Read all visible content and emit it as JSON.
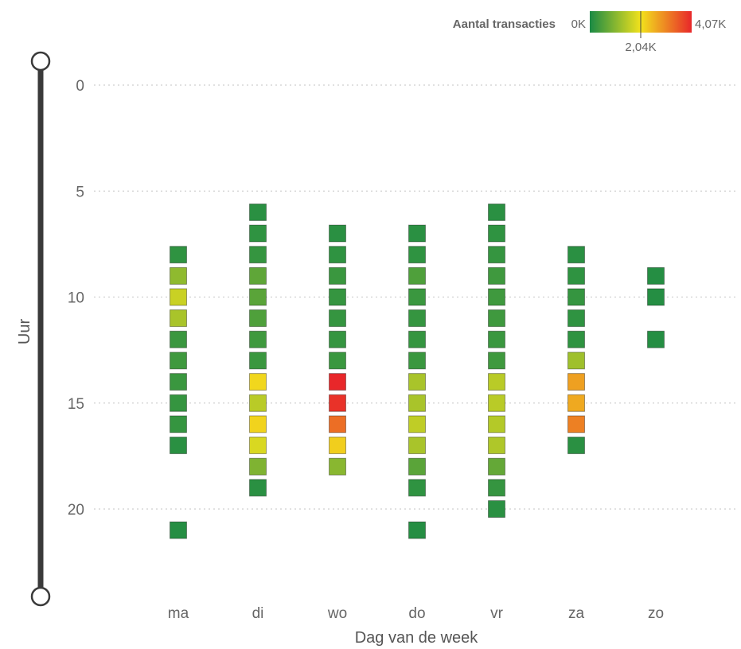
{
  "chart_data": {
    "type": "heatmap",
    "legend": {
      "title": "Aantal transacties",
      "min_label": "0K",
      "mid_label": "2,04K",
      "max_label": "4,07K",
      "min": 0,
      "mid": 2040,
      "max": 4070,
      "colors": [
        "#1a8a45",
        "#f2e21c",
        "#e8272a"
      ]
    },
    "xlabel": "Dag van de week",
    "ylabel": "Uur",
    "categories": [
      "ma",
      "di",
      "wo",
      "do",
      "vr",
      "za",
      "zo"
    ],
    "y_ticks": [
      "0",
      "5",
      "10",
      "15",
      "20"
    ],
    "y_tick_values": [
      0,
      5,
      10,
      15,
      20
    ],
    "ylim": [
      0,
      23
    ],
    "grid": true,
    "slider": {
      "min": 0,
      "max": 23
    },
    "cells": [
      {
        "day": "ma",
        "hour": 8,
        "value": 200
      },
      {
        "day": "ma",
        "hour": 9,
        "value": 1100
      },
      {
        "day": "ma",
        "hour": 10,
        "value": 1650
      },
      {
        "day": "ma",
        "hour": 11,
        "value": 1350
      },
      {
        "day": "ma",
        "hour": 12,
        "value": 300
      },
      {
        "day": "ma",
        "hour": 13,
        "value": 350
      },
      {
        "day": "ma",
        "hour": 14,
        "value": 300
      },
      {
        "day": "ma",
        "hour": 15,
        "value": 250
      },
      {
        "day": "ma",
        "hour": 16,
        "value": 250
      },
      {
        "day": "ma",
        "hour": 17,
        "value": 150
      },
      {
        "day": "ma",
        "hour": 21,
        "value": 100
      },
      {
        "day": "di",
        "hour": 6,
        "value": 150
      },
      {
        "day": "di",
        "hour": 7,
        "value": 200
      },
      {
        "day": "di",
        "hour": 8,
        "value": 250
      },
      {
        "day": "di",
        "hour": 9,
        "value": 650
      },
      {
        "day": "di",
        "hour": 10,
        "value": 600
      },
      {
        "day": "di",
        "hour": 11,
        "value": 500
      },
      {
        "day": "di",
        "hour": 12,
        "value": 350
      },
      {
        "day": "di",
        "hour": 13,
        "value": 300
      },
      {
        "day": "di",
        "hour": 14,
        "value": 2150
      },
      {
        "day": "di",
        "hour": 15,
        "value": 1500
      },
      {
        "day": "di",
        "hour": 16,
        "value": 2200
      },
      {
        "day": "di",
        "hour": 17,
        "value": 1800
      },
      {
        "day": "di",
        "hour": 18,
        "value": 950
      },
      {
        "day": "di",
        "hour": 19,
        "value": 150
      },
      {
        "day": "wo",
        "hour": 7,
        "value": 150
      },
      {
        "day": "wo",
        "hour": 8,
        "value": 200
      },
      {
        "day": "wo",
        "hour": 9,
        "value": 300
      },
      {
        "day": "wo",
        "hour": 10,
        "value": 250
      },
      {
        "day": "wo",
        "hour": 11,
        "value": 250
      },
      {
        "day": "wo",
        "hour": 12,
        "value": 250
      },
      {
        "day": "wo",
        "hour": 13,
        "value": 300
      },
      {
        "day": "wo",
        "hour": 14,
        "value": 4070
      },
      {
        "day": "wo",
        "hour": 15,
        "value": 3950
      },
      {
        "day": "wo",
        "hour": 16,
        "value": 3300
      },
      {
        "day": "wo",
        "hour": 17,
        "value": 2250
      },
      {
        "day": "wo",
        "hour": 18,
        "value": 1050
      },
      {
        "day": "do",
        "hour": 7,
        "value": 150
      },
      {
        "day": "do",
        "hour": 8,
        "value": 200
      },
      {
        "day": "do",
        "hour": 9,
        "value": 500
      },
      {
        "day": "do",
        "hour": 10,
        "value": 300
      },
      {
        "day": "do",
        "hour": 11,
        "value": 250
      },
      {
        "day": "do",
        "hour": 12,
        "value": 250
      },
      {
        "day": "do",
        "hour": 13,
        "value": 300
      },
      {
        "day": "do",
        "hour": 14,
        "value": 1350
      },
      {
        "day": "do",
        "hour": 15,
        "value": 1350
      },
      {
        "day": "do",
        "hour": 16,
        "value": 1550
      },
      {
        "day": "do",
        "hour": 17,
        "value": 1350
      },
      {
        "day": "do",
        "hour": 18,
        "value": 600
      },
      {
        "day": "do",
        "hour": 19,
        "value": 200
      },
      {
        "day": "do",
        "hour": 21,
        "value": 100
      },
      {
        "day": "vr",
        "hour": 6,
        "value": 150
      },
      {
        "day": "vr",
        "hour": 7,
        "value": 200
      },
      {
        "day": "vr",
        "hour": 8,
        "value": 250
      },
      {
        "day": "vr",
        "hour": 9,
        "value": 350
      },
      {
        "day": "vr",
        "hour": 10,
        "value": 350
      },
      {
        "day": "vr",
        "hour": 11,
        "value": 350
      },
      {
        "day": "vr",
        "hour": 12,
        "value": 300
      },
      {
        "day": "vr",
        "hour": 13,
        "value": 350
      },
      {
        "day": "vr",
        "hour": 14,
        "value": 1500
      },
      {
        "day": "vr",
        "hour": 15,
        "value": 1500
      },
      {
        "day": "vr",
        "hour": 16,
        "value": 1450
      },
      {
        "day": "vr",
        "hour": 17,
        "value": 1400
      },
      {
        "day": "vr",
        "hour": 18,
        "value": 700
      },
      {
        "day": "vr",
        "hour": 19,
        "value": 250
      },
      {
        "day": "vr",
        "hour": 20,
        "value": 150
      },
      {
        "day": "za",
        "hour": 8,
        "value": 150
      },
      {
        "day": "za",
        "hour": 9,
        "value": 200
      },
      {
        "day": "za",
        "hour": 10,
        "value": 250
      },
      {
        "day": "za",
        "hour": 11,
        "value": 200
      },
      {
        "day": "za",
        "hour": 12,
        "value": 200
      },
      {
        "day": "za",
        "hour": 13,
        "value": 1250
      },
      {
        "day": "za",
        "hour": 14,
        "value": 2750
      },
      {
        "day": "za",
        "hour": 15,
        "value": 2650
      },
      {
        "day": "za",
        "hour": 16,
        "value": 3100
      },
      {
        "day": "za",
        "hour": 17,
        "value": 150
      },
      {
        "day": "zo",
        "hour": 9,
        "value": 100
      },
      {
        "day": "zo",
        "hour": 10,
        "value": 100
      },
      {
        "day": "zo",
        "hour": 12,
        "value": 100
      }
    ]
  }
}
